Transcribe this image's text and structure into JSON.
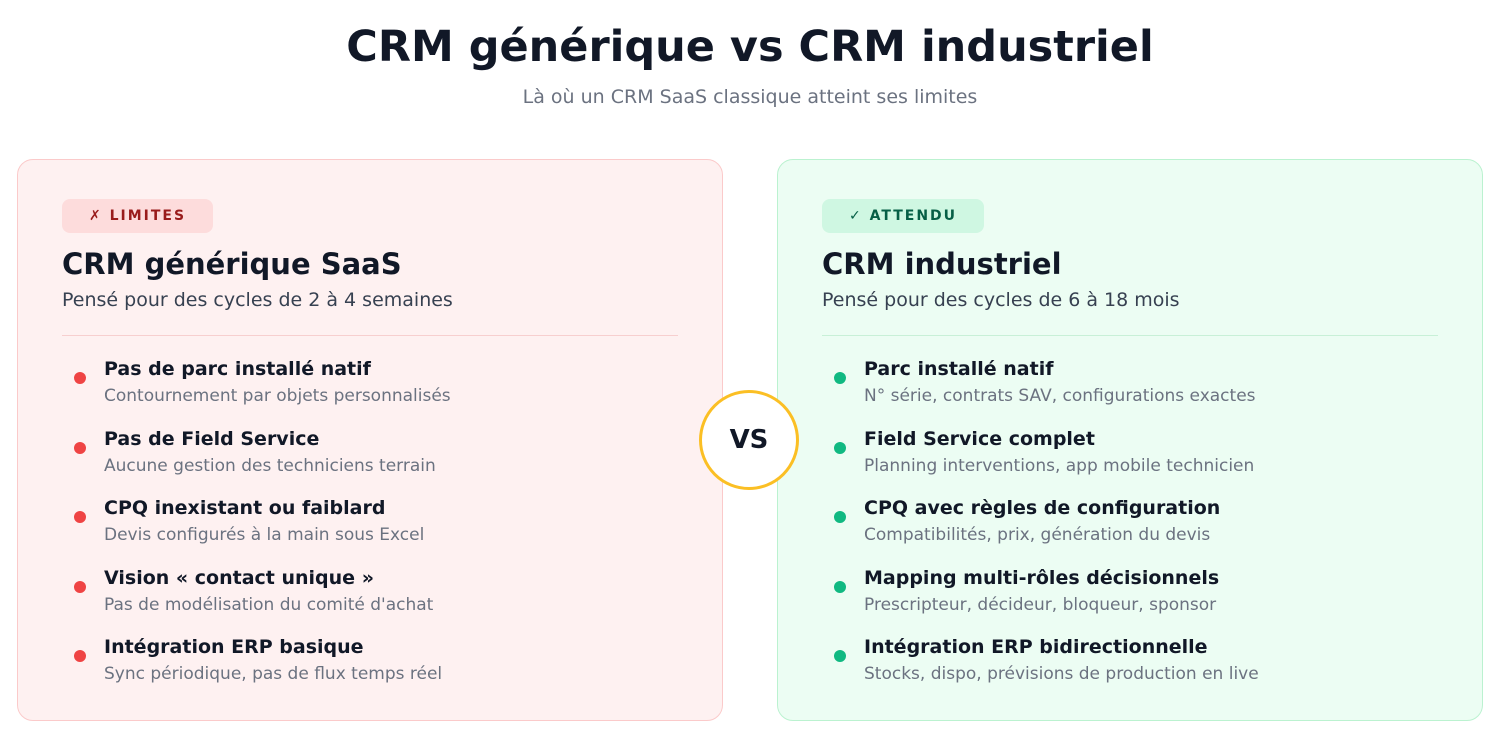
{
  "header": {
    "title": "CRM générique vs CRM industriel",
    "subtitle": "Là où un CRM SaaS classique atteint ses limites"
  },
  "vs": "VS",
  "cards": [
    {
      "badge": "✗ LIMITES",
      "title": "CRM générique SaaS",
      "subtitle": "Pensé pour des cycles de 2 à 4 semaines",
      "items": [
        {
          "title": "Pas de parc installé natif",
          "desc": "Contournement par objets personnalisés"
        },
        {
          "title": "Pas de Field Service",
          "desc": "Aucune gestion des techniciens terrain"
        },
        {
          "title": "CPQ inexistant ou faiblard",
          "desc": "Devis configurés à la main sous Excel"
        },
        {
          "title": "Vision « contact unique »",
          "desc": "Pas de modélisation du comité d'achat"
        },
        {
          "title": "Intégration ERP basique",
          "desc": "Sync périodique, pas de flux temps réel"
        }
      ]
    },
    {
      "badge": "✓ ATTENDU",
      "title": "CRM industriel",
      "subtitle": "Pensé pour des cycles de 6 à 18 mois",
      "items": [
        {
          "title": "Parc installé natif",
          "desc": "N° série, contrats SAV, configurations exactes"
        },
        {
          "title": "Field Service complet",
          "desc": "Planning interventions, app mobile technicien"
        },
        {
          "title": "CPQ avec règles de configuration",
          "desc": "Compatibilités, prix, génération du devis"
        },
        {
          "title": "Mapping multi-rôles décisionnels",
          "desc": "Prescripteur, décideur, bloqueur, sponsor"
        },
        {
          "title": "Intégration ERP bidirectionnelle",
          "desc": "Stocks, dispo, prévisions de production en live"
        }
      ]
    }
  ]
}
